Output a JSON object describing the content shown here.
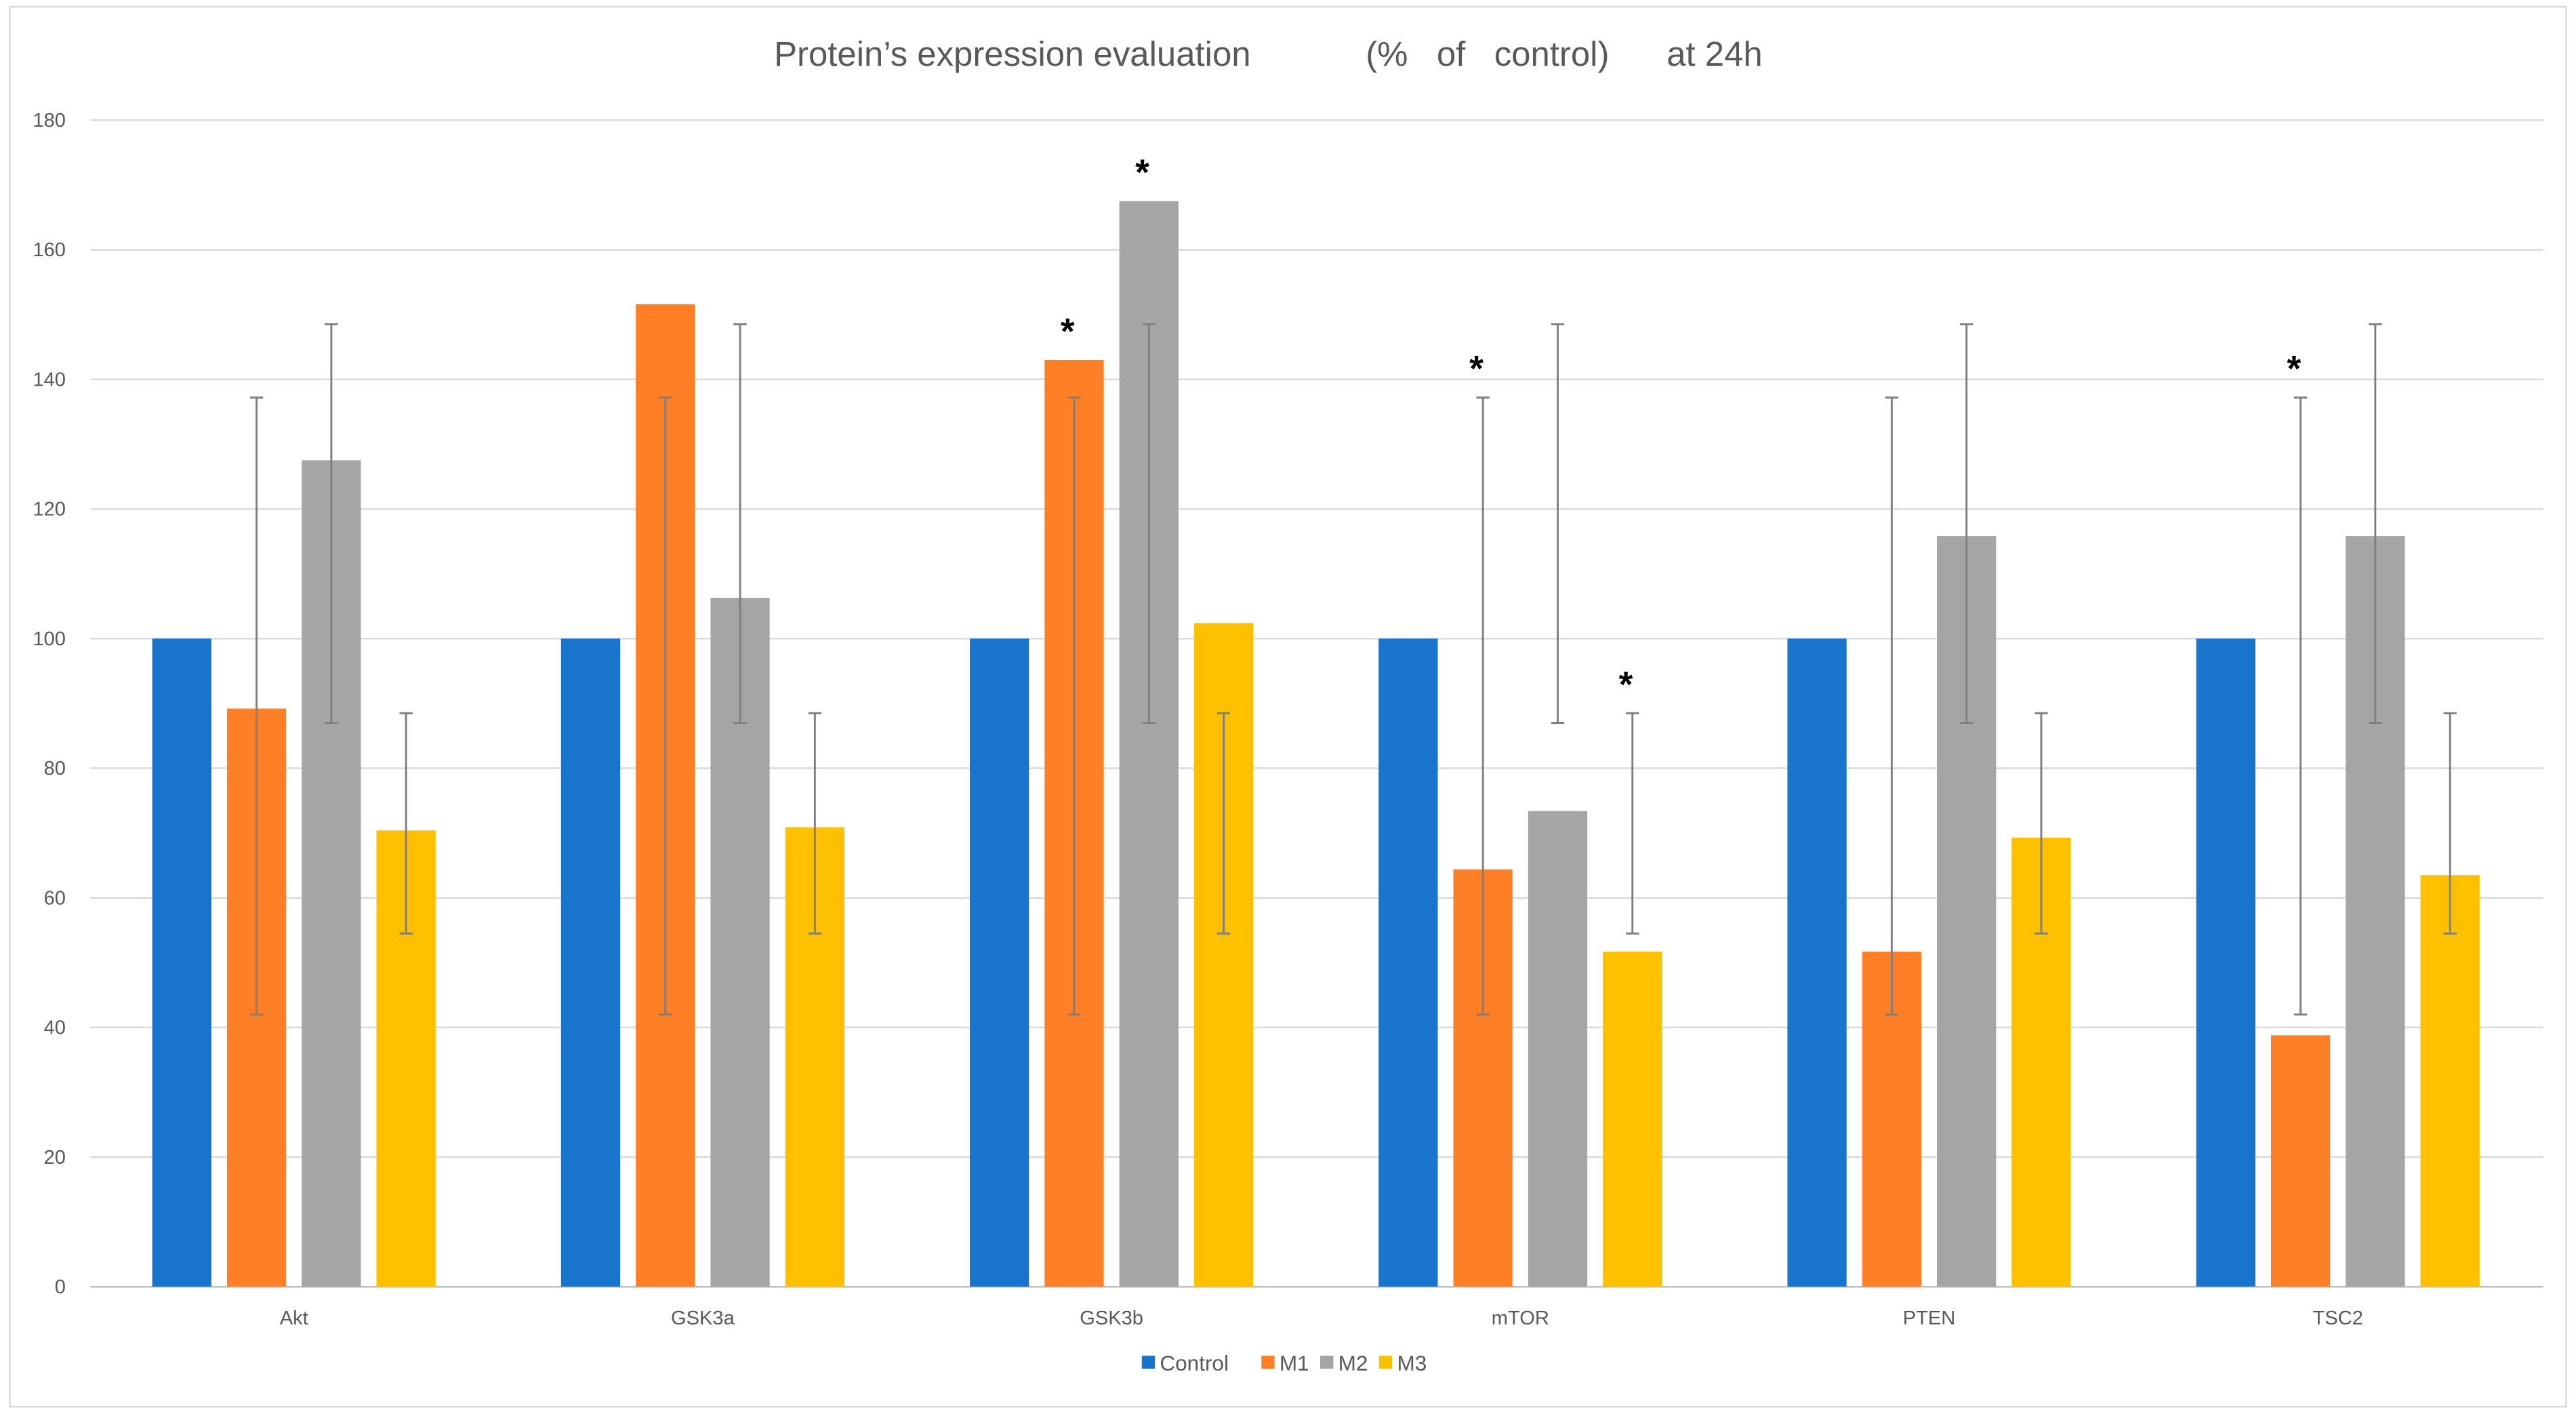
{
  "chart_data": {
    "type": "bar",
    "title": "Protein’s expression evaluation            (%   of   control)      at 24h",
    "xlabel": "",
    "ylabel": "",
    "ylim": [
      0,
      180
    ],
    "yticks": [
      0,
      20,
      40,
      60,
      80,
      100,
      120,
      140,
      160,
      180
    ],
    "grid": true,
    "legend_position": "bottom",
    "categories": [
      "Akt",
      "GSK3a",
      "GSK3b",
      "mTOR",
      "PTEN",
      "TSC2"
    ],
    "series": [
      {
        "name": "Control",
        "color": "#1874CD",
        "values": [
          100,
          100,
          100,
          100,
          100,
          100
        ],
        "error": null
      },
      {
        "name": "M1",
        "color": "#FF7F27",
        "values": [
          89.2,
          151.6,
          143.0,
          64.4,
          51.7,
          38.8
        ],
        "error": [
          42,
          137.2
        ]
      },
      {
        "name": "M2",
        "color": "#A5A5A5",
        "values": [
          127.5,
          106.3,
          167.5,
          73.4,
          115.8,
          115.8
        ],
        "error": [
          87,
          148.5
        ]
      },
      {
        "name": "M3",
        "color": "#FFC000",
        "values": [
          70.4,
          70.9,
          102.4,
          51.7,
          69.3,
          63.5
        ],
        "error": [
          54.5,
          88.5
        ]
      }
    ],
    "significance_markers": [
      {
        "category": "GSK3b",
        "series": "M1",
        "label": "*"
      },
      {
        "category": "GSK3b",
        "series": "M2",
        "label": "*"
      },
      {
        "category": "mTOR",
        "series": "M1",
        "label": "*"
      },
      {
        "category": "mTOR",
        "series": "M3",
        "label": "*"
      },
      {
        "category": "TSC2",
        "series": "M1",
        "label": "*"
      }
    ]
  }
}
